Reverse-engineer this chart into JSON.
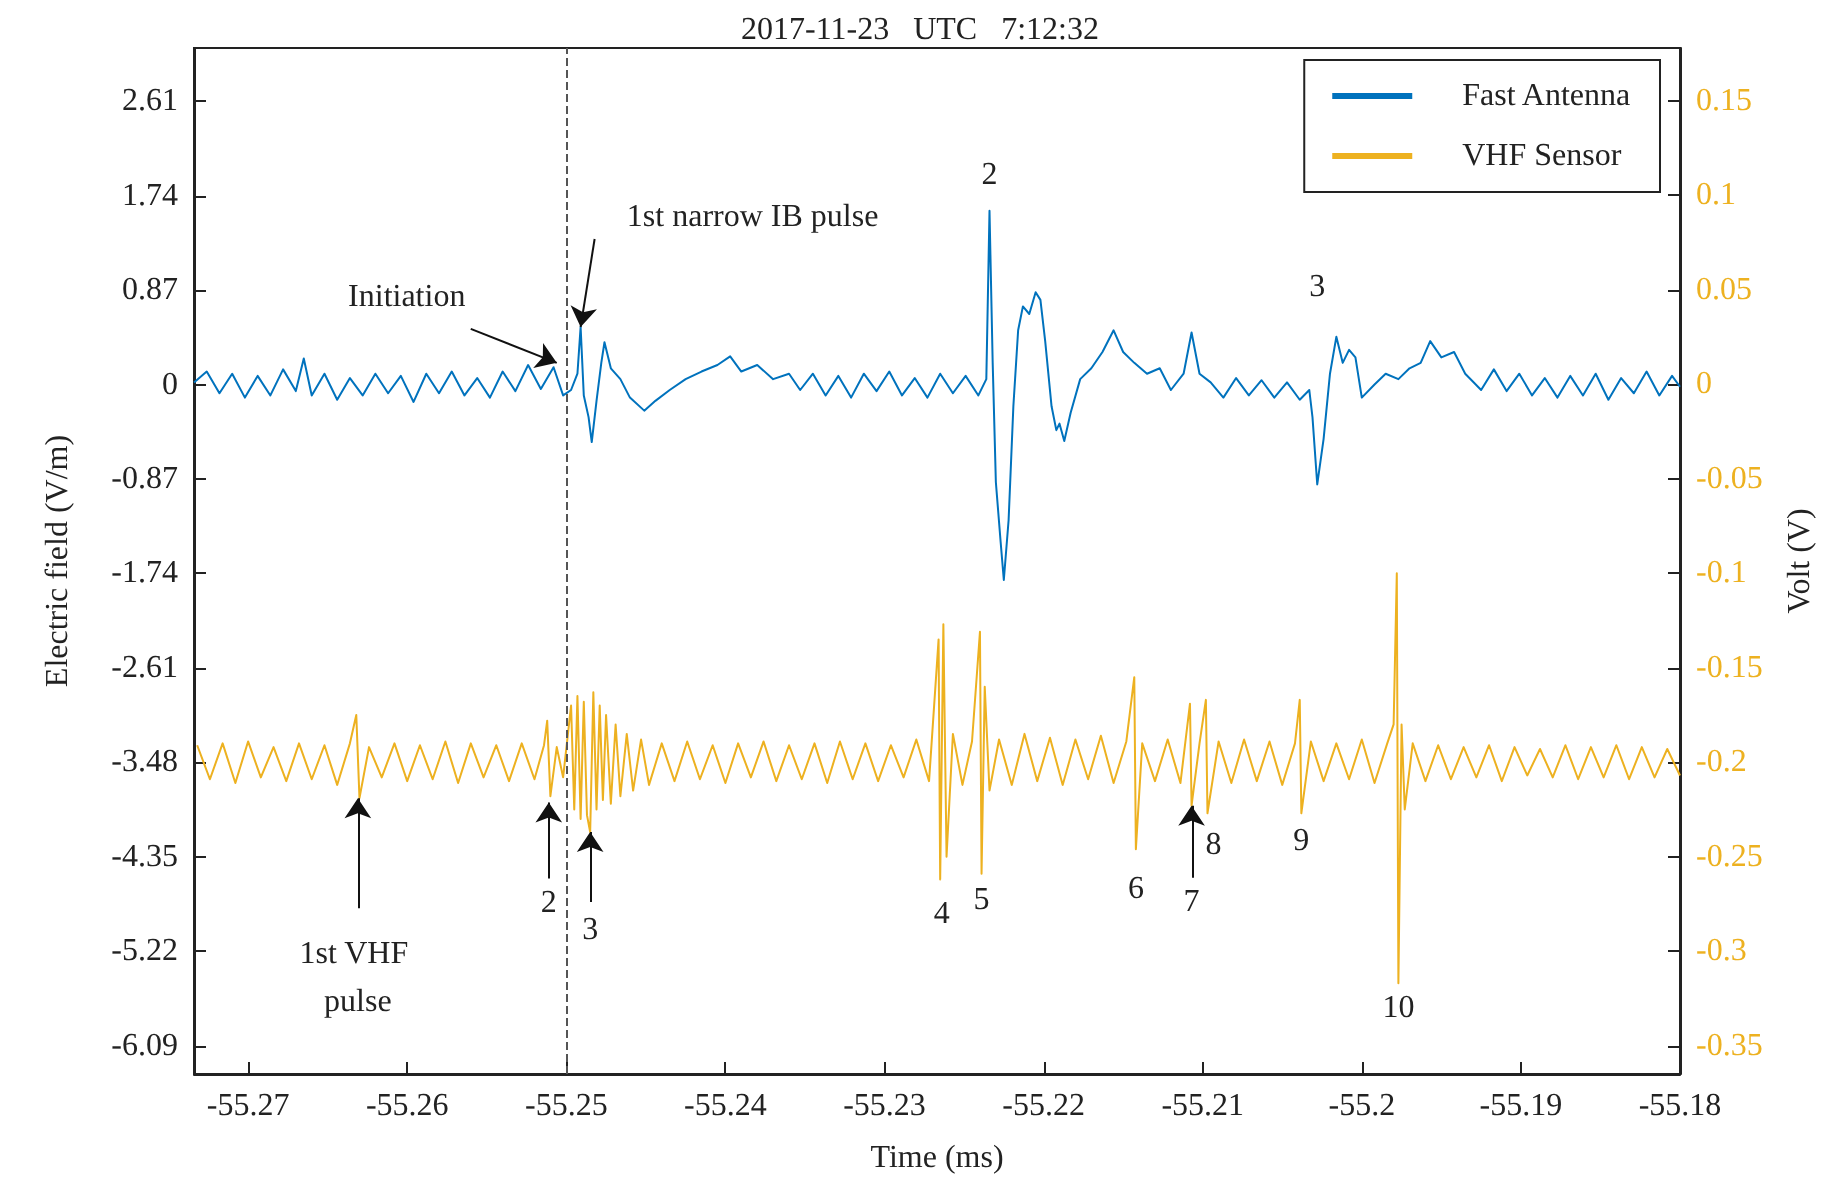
{
  "chart_data": {
    "type": "line",
    "title": "2017-11-23   UTC   7:12:32",
    "xlabel": "Time (ms)",
    "ylabel": "Electric field (V/m)",
    "y2label": "Volt (V)",
    "xlim": [
      -55.2734,
      -55.18
    ],
    "xticks": [
      -55.27,
      -55.26,
      -55.25,
      -55.24,
      -55.23,
      -55.22,
      -55.21,
      -55.2,
      -55.19,
      -55.18
    ],
    "ylim": [
      -6.35,
      3.1
    ],
    "yticks": [
      -6.09,
      -5.22,
      -4.35,
      -3.48,
      -2.61,
      -1.74,
      -0.87,
      0,
      0.87,
      1.74,
      2.61
    ],
    "y2lim": [
      -0.365,
      0.178
    ],
    "y2ticks": [
      -0.35,
      -0.3,
      -0.25,
      -0.2,
      -0.15,
      -0.1,
      -0.05,
      0,
      0.05,
      0.1,
      0.15
    ],
    "grid": false,
    "legend": "top right",
    "marker": "none",
    "line_style": "solid",
    "ref_lines": [
      {
        "axis": "x",
        "value": -55.25,
        "color": "#555555",
        "line_style": "dashed"
      }
    ],
    "annotations": [
      {
        "text": "Initiation",
        "x": -55.2506,
        "y": 0.2
      },
      {
        "text": "1st narrow IB pulse",
        "x": -55.2491,
        "y": 0.53
      },
      {
        "text": "2",
        "x": -55.2234,
        "y": 1.6
      },
      {
        "text": "3",
        "x": -55.2028,
        "y": 0
      },
      {
        "text": "1st VHF pulse",
        "x": -55.2631,
        "y": -3.81
      },
      {
        "text": "2",
        "x": -55.2511,
        "y": -3.85
      },
      {
        "text": "3",
        "x": -55.2485,
        "y": -4.12
      },
      {
        "text": "4",
        "x": -55.2264,
        "y": -4.56
      },
      {
        "text": "5",
        "x": -55.2239,
        "y": -4.51
      },
      {
        "text": "6",
        "x": -55.2142,
        "y": -4.28
      },
      {
        "text": "7",
        "x": -55.2107,
        "y": -3.88
      },
      {
        "text": "8",
        "x": -55.2097,
        "y": -3.95
      },
      {
        "text": "9",
        "x": -55.2038,
        "y": -3.95
      },
      {
        "text": "10",
        "x": -55.1977,
        "y": -5.52
      }
    ],
    "series": [
      {
        "name": "Fast Antenna",
        "color": "#0072bd",
        "axis": "y",
        "x": [
          -55.2734,
          -55.2726,
          -55.2718,
          -55.271,
          -55.2702,
          -55.2694,
          -55.2686,
          -55.2678,
          -55.267,
          -55.2665,
          -55.266,
          -55.2652,
          -55.2644,
          -55.2636,
          -55.2628,
          -55.262,
          -55.2612,
          -55.2604,
          -55.2596,
          -55.2588,
          -55.258,
          -55.2572,
          -55.2564,
          -55.2556,
          -55.2548,
          -55.254,
          -55.2532,
          -55.2524,
          -55.2516,
          -55.2508,
          -55.2502,
          -55.2497,
          -55.2493,
          -55.2491,
          -55.2489,
          -55.2486,
          -55.2484,
          -55.2481,
          -55.2478,
          -55.2476,
          -55.2472,
          -55.2466,
          -55.246,
          -55.2451,
          -55.2444,
          -55.2435,
          -55.2425,
          -55.2415,
          -55.2405,
          -55.2397,
          -55.239,
          -55.238,
          -55.237,
          -55.236,
          -55.2353,
          -55.2345,
          -55.2337,
          -55.2329,
          -55.2321,
          -55.2313,
          -55.2305,
          -55.2297,
          -55.2289,
          -55.2281,
          -55.2273,
          -55.2265,
          -55.2257,
          -55.2249,
          -55.2241,
          -55.2236,
          -55.2234,
          -55.2232,
          -55.223,
          -55.2227,
          -55.2225,
          -55.2222,
          -55.2219,
          -55.2216,
          -55.2213,
          -55.2209,
          -55.2205,
          -55.2202,
          -55.2199,
          -55.2195,
          -55.2192,
          -55.219,
          -55.2187,
          -55.2183,
          -55.2177,
          -55.217,
          -55.2163,
          -55.2156,
          -55.215,
          -55.2143,
          -55.2135,
          -55.2127,
          -55.212,
          -55.2112,
          -55.2107,
          -55.2102,
          -55.2095,
          -55.2087,
          -55.2079,
          -55.2071,
          -55.2063,
          -55.2055,
          -55.2047,
          -55.2039,
          -55.2033,
          -55.2031,
          -55.2028,
          -55.2024,
          -55.202,
          -55.2016,
          -55.2012,
          -55.2008,
          -55.2004,
          -55.2,
          -55.1992,
          -55.1985,
          -55.1977,
          -55.197,
          -55.1963,
          -55.1957,
          -55.195,
          -55.1942,
          -55.1935,
          -55.1925,
          -55.1917,
          -55.1909,
          -55.1901,
          -55.1893,
          -55.1885,
          -55.1877,
          -55.1869,
          -55.1861,
          -55.1853,
          -55.1845,
          -55.1837,
          -55.1829,
          -55.1821,
          -55.1813,
          -55.1805,
          -55.18
        ],
        "values": [
          0.02,
          0.12,
          -0.08,
          0.1,
          -0.12,
          0.08,
          -0.1,
          0.14,
          -0.06,
          0.24,
          -0.1,
          0.1,
          -0.14,
          0.06,
          -0.1,
          0.1,
          -0.08,
          0.08,
          -0.16,
          0.1,
          -0.08,
          0.12,
          -0.1,
          0.06,
          -0.12,
          0.12,
          -0.06,
          0.18,
          -0.04,
          0.16,
          -0.1,
          -0.05,
          0.1,
          0.53,
          -0.1,
          -0.3,
          -0.53,
          -0.15,
          0.2,
          0.39,
          0.15,
          0.05,
          -0.12,
          -0.24,
          -0.15,
          -0.05,
          0.05,
          0.12,
          0.18,
          0.26,
          0.12,
          0.18,
          0.05,
          0.1,
          -0.05,
          0.1,
          -0.1,
          0.08,
          -0.12,
          0.1,
          -0.06,
          0.12,
          -0.1,
          0.06,
          -0.12,
          0.1,
          -0.08,
          0.08,
          -0.1,
          0.05,
          1.6,
          0.2,
          -0.9,
          -1.45,
          -1.8,
          -1.25,
          -0.2,
          0.5,
          0.72,
          0.65,
          0.85,
          0.78,
          0.4,
          -0.2,
          -0.42,
          -0.36,
          -0.52,
          -0.26,
          0.05,
          0.15,
          0.3,
          0.5,
          0.3,
          0.2,
          0.1,
          0.15,
          -0.05,
          0.1,
          0.48,
          0.1,
          0.02,
          -0.12,
          0.06,
          -0.1,
          0.04,
          -0.12,
          0.02,
          -0.14,
          -0.05,
          -0.3,
          -0.92,
          -0.5,
          0.1,
          0.44,
          0.2,
          0.32,
          0.25,
          -0.12,
          0,
          0.1,
          0.05,
          0.15,
          0.2,
          0.4,
          0.25,
          0.3,
          0.1,
          -0.05,
          0.14,
          -0.06,
          0.1,
          -0.1,
          0.06,
          -0.12,
          0.08,
          -0.1,
          0.1,
          -0.14,
          0.06,
          -0.08,
          0.12,
          -0.1,
          0.08,
          -0.02
        ]
      },
      {
        "name": "VHF Sensor",
        "color": "#edb120",
        "axis": "y2",
        "x": [
          -55.2732,
          -55.2724,
          -55.2716,
          -55.2708,
          -55.27,
          -55.2692,
          -55.2684,
          -55.2676,
          -55.2668,
          -55.266,
          -55.2652,
          -55.2644,
          -55.2636,
          -55.2632,
          -55.263,
          -55.2624,
          -55.2616,
          -55.2608,
          -55.26,
          -55.2592,
          -55.2584,
          -55.2576,
          -55.2568,
          -55.256,
          -55.2552,
          -55.2544,
          -55.2536,
          -55.2528,
          -55.252,
          -55.2514,
          -55.2512,
          -55.251,
          -55.2506,
          -55.2502,
          -55.2497,
          -55.2495,
          -55.2493,
          -55.2491,
          -55.2489,
          -55.2487,
          -55.2485,
          -55.2483,
          -55.2481,
          -55.2479,
          -55.2477,
          -55.2475,
          -55.2472,
          -55.2469,
          -55.2466,
          -55.2462,
          -55.2458,
          -55.2453,
          -55.2448,
          -55.244,
          -55.2432,
          -55.2424,
          -55.2416,
          -55.2408,
          -55.24,
          -55.2392,
          -55.2384,
          -55.2376,
          -55.2368,
          -55.236,
          -55.2352,
          -55.2344,
          -55.2336,
          -55.2328,
          -55.232,
          -55.2312,
          -55.2304,
          -55.2296,
          -55.2288,
          -55.228,
          -55.2272,
          -55.2266,
          -55.2265,
          -55.2263,
          -55.2261,
          -55.2257,
          -55.2251,
          -55.2245,
          -55.224,
          -55.2239,
          -55.2237,
          -55.2234,
          -55.2228,
          -55.222,
          -55.2212,
          -55.2204,
          -55.2196,
          -55.2188,
          -55.218,
          -55.2172,
          -55.2164,
          -55.2156,
          -55.2148,
          -55.2143,
          -55.2142,
          -55.2138,
          -55.213,
          -55.2122,
          -55.2114,
          -55.2108,
          -55.2107,
          -55.2102,
          -55.2098,
          -55.2097,
          -55.209,
          -55.2082,
          -55.2074,
          -55.2066,
          -55.2058,
          -55.205,
          -55.2042,
          -55.2039,
          -55.2038,
          -55.2032,
          -55.2024,
          -55.2016,
          -55.2008,
          -55.2,
          -55.1992,
          -55.1984,
          -55.198,
          -55.1978,
          -55.1977,
          -55.1975,
          -55.1973,
          -55.1968,
          -55.196,
          -55.1952,
          -55.1944,
          -55.1936,
          -55.1928,
          -55.192,
          -55.1912,
          -55.1904,
          -55.1896,
          -55.1888,
          -55.188,
          -55.1872,
          -55.1864,
          -55.1856,
          -55.1848,
          -55.184,
          -55.1832,
          -55.1824,
          -55.1816,
          -55.1808,
          -55.18
        ],
        "values": [
          -0.191,
          -0.209,
          -0.19,
          -0.211,
          -0.189,
          -0.208,
          -0.192,
          -0.21,
          -0.19,
          -0.209,
          -0.191,
          -0.212,
          -0.19,
          -0.175,
          -0.219,
          -0.192,
          -0.208,
          -0.19,
          -0.21,
          -0.191,
          -0.209,
          -0.189,
          -0.211,
          -0.19,
          -0.208,
          -0.191,
          -0.21,
          -0.19,
          -0.209,
          -0.191,
          -0.178,
          -0.218,
          -0.192,
          -0.208,
          -0.17,
          -0.225,
          -0.165,
          -0.23,
          -0.168,
          -0.228,
          -0.237,
          -0.163,
          -0.225,
          -0.17,
          -0.22,
          -0.175,
          -0.222,
          -0.18,
          -0.218,
          -0.185,
          -0.215,
          -0.188,
          -0.212,
          -0.19,
          -0.21,
          -0.189,
          -0.209,
          -0.191,
          -0.211,
          -0.19,
          -0.208,
          -0.189,
          -0.21,
          -0.191,
          -0.209,
          -0.19,
          -0.211,
          -0.189,
          -0.209,
          -0.19,
          -0.21,
          -0.191,
          -0.208,
          -0.188,
          -0.21,
          -0.135,
          -0.262,
          -0.127,
          -0.25,
          -0.185,
          -0.212,
          -0.189,
          -0.131,
          -0.259,
          -0.16,
          -0.215,
          -0.188,
          -0.212,
          -0.185,
          -0.21,
          -0.187,
          -0.212,
          -0.188,
          -0.209,
          -0.186,
          -0.211,
          -0.189,
          -0.155,
          -0.246,
          -0.19,
          -0.21,
          -0.188,
          -0.211,
          -0.169,
          -0.223,
          -0.19,
          -0.167,
          -0.227,
          -0.189,
          -0.211,
          -0.188,
          -0.21,
          -0.189,
          -0.212,
          -0.19,
          -0.167,
          -0.227,
          -0.189,
          -0.21,
          -0.19,
          -0.209,
          -0.188,
          -0.211,
          -0.19,
          -0.18,
          -0.1,
          -0.317,
          -0.18,
          -0.225,
          -0.19,
          -0.21,
          -0.191,
          -0.209,
          -0.192,
          -0.208,
          -0.191,
          -0.21,
          -0.192,
          -0.207,
          -0.193,
          -0.208,
          -0.191,
          -0.209,
          -0.192,
          -0.208,
          -0.191,
          -0.209,
          -0.192,
          -0.208,
          -0.193,
          -0.207
        ]
      }
    ]
  }
}
